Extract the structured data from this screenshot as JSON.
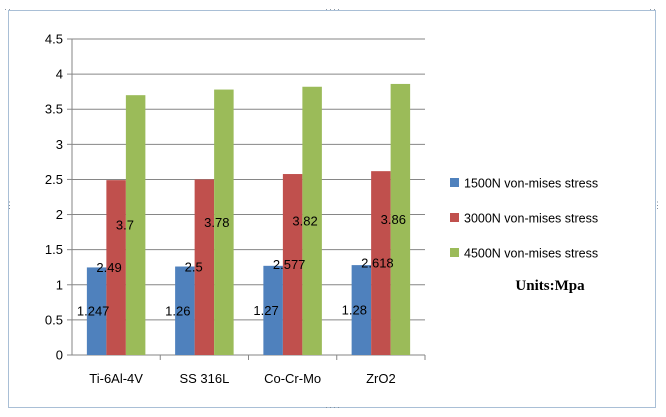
{
  "chart_data": {
    "type": "bar",
    "title": "",
    "xlabel": "",
    "ylabel": "",
    "categories": [
      "Ti-6Al-4V",
      "SS 316L",
      "Co-Cr-Mo",
      "ZrO2"
    ],
    "ylim": [
      0,
      4.5
    ],
    "yticks": [
      0,
      0.5,
      1,
      1.5,
      2,
      2.5,
      3,
      3.5,
      4,
      4.5
    ],
    "ytick_labels": [
      "0",
      "0.5",
      "1",
      "1.5",
      "2",
      "2.5",
      "3",
      "3.5",
      "4",
      "4.5"
    ],
    "grid": true,
    "legend_position": "right",
    "series": [
      {
        "name": "1500N von-mises stress",
        "color": "#4f81bd",
        "values": [
          1.247,
          1.26,
          1.27,
          1.28
        ],
        "labels": [
          "1.247",
          "1.26",
          "1.27",
          "1.28"
        ]
      },
      {
        "name": "3000N von-mises stress",
        "color": "#c0504d",
        "values": [
          2.49,
          2.5,
          2.577,
          2.618
        ],
        "labels": [
          "2.49",
          "2.5",
          "2.577",
          "2.618"
        ]
      },
      {
        "name": "4500N von-mises stress",
        "color": "#9bbb59",
        "values": [
          3.7,
          3.78,
          3.82,
          3.86
        ],
        "labels": [
          "3.7",
          "3.78",
          "3.82",
          "3.86"
        ]
      }
    ],
    "annotation": "Units:Mpa"
  }
}
